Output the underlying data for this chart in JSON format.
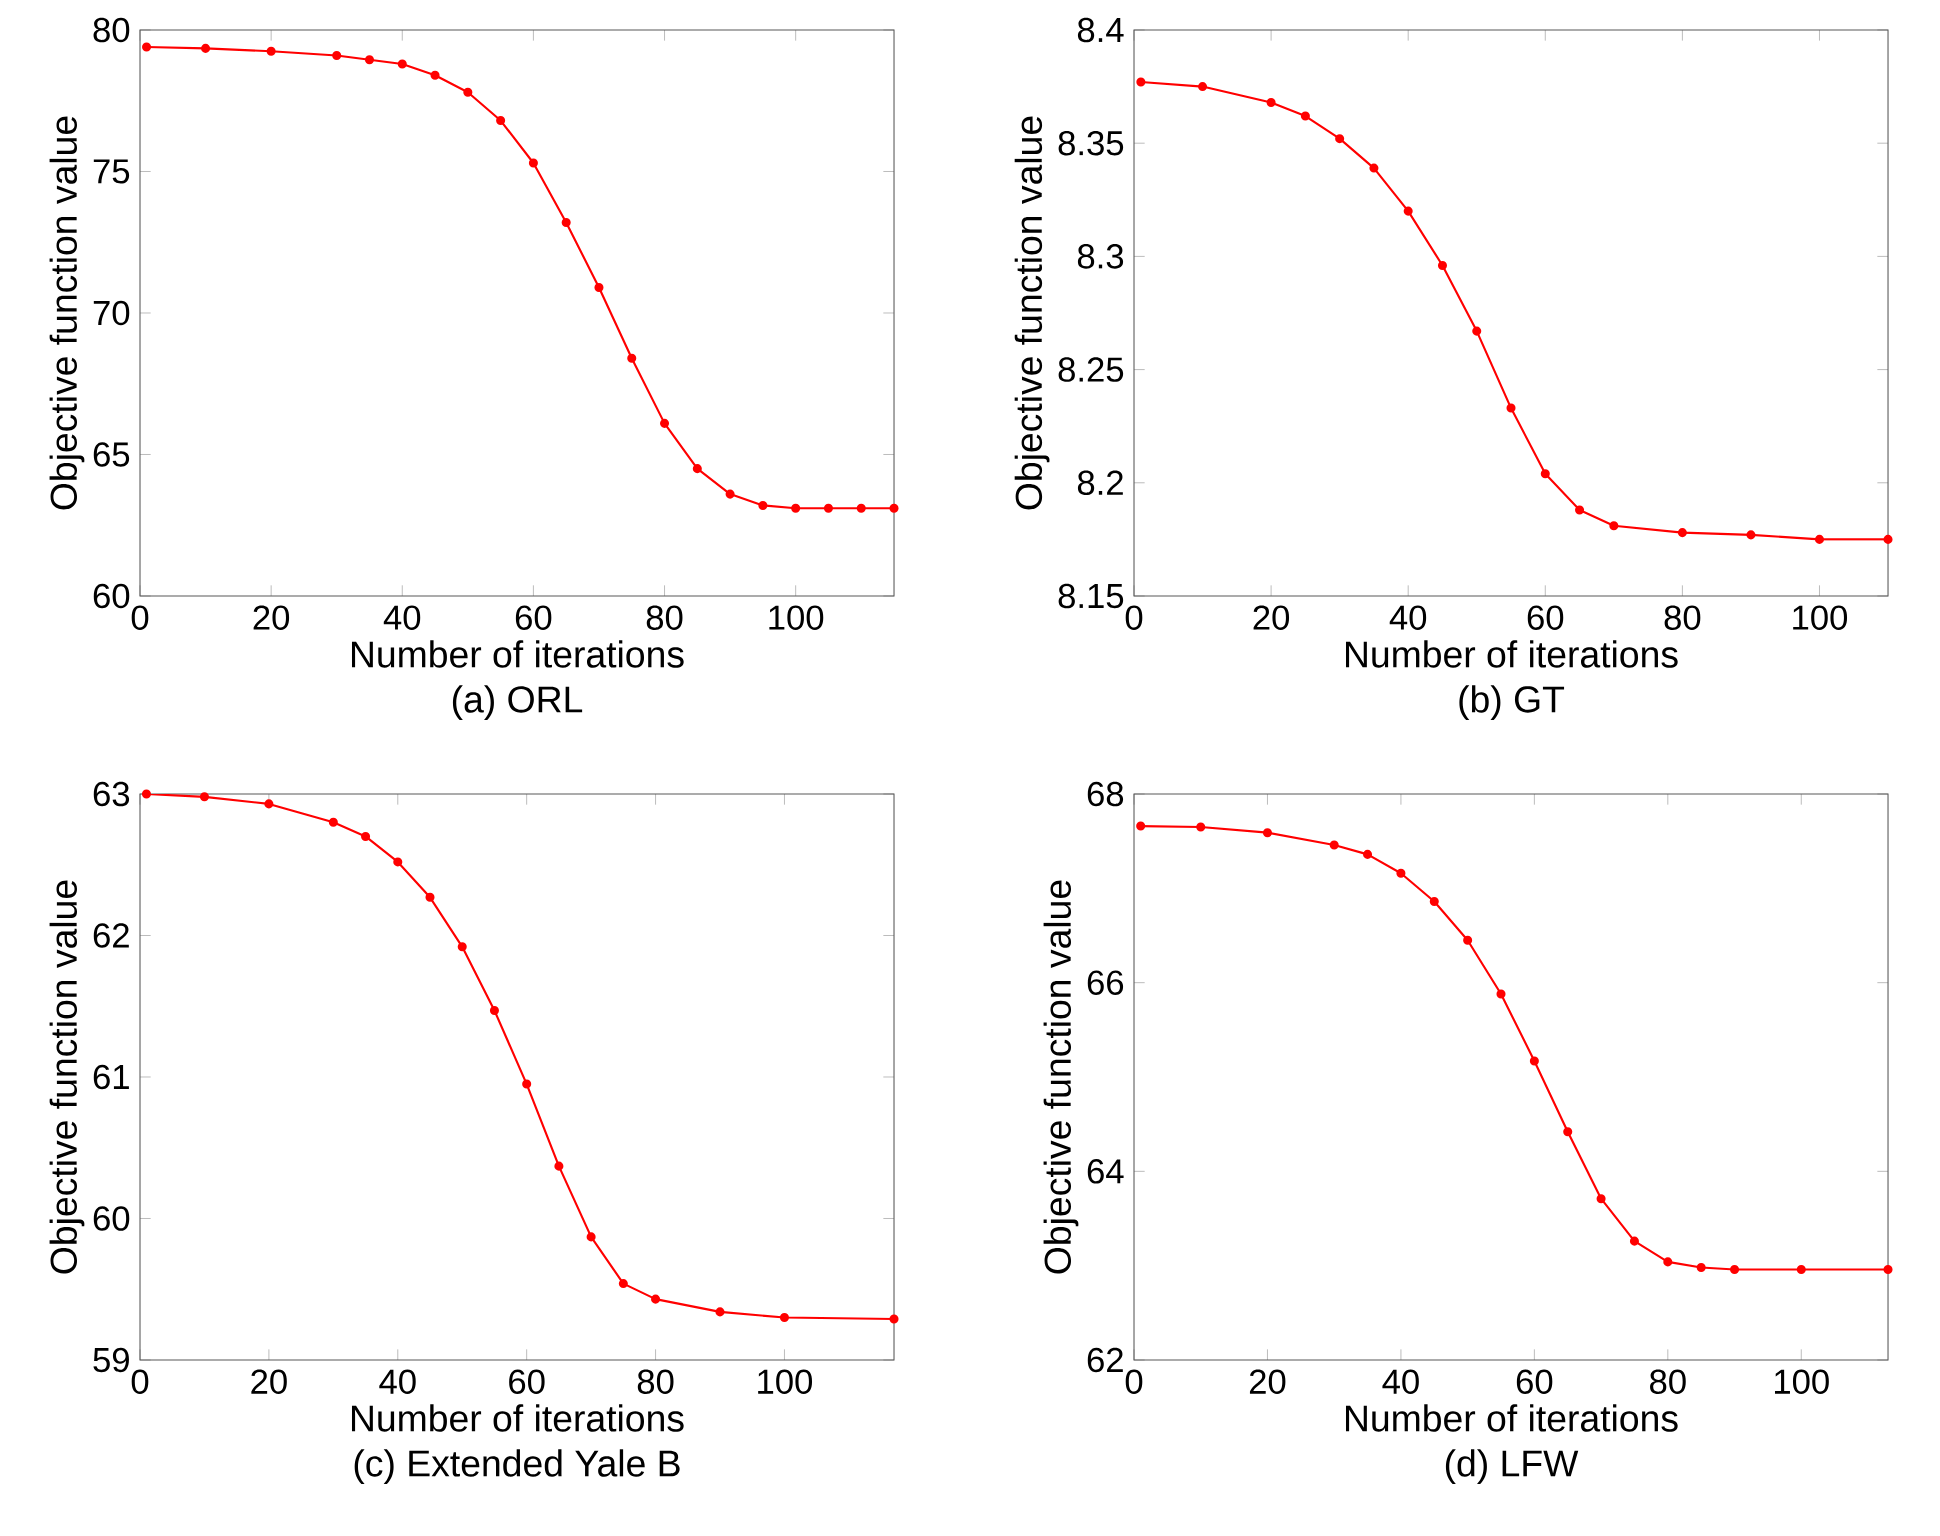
{
  "chart_data": [
    {
      "type": "line",
      "title": "(a) ORL",
      "xlabel": "Number of iterations",
      "ylabel": "Objective function value",
      "color": "#ff0000",
      "marker": "circle",
      "xlim": [
        0,
        115
      ],
      "ylim": [
        60,
        80
      ],
      "xticks": [
        0,
        20,
        40,
        60,
        80,
        100
      ],
      "yticks": [
        60,
        65,
        70,
        75,
        80
      ],
      "x": [
        1,
        10,
        20,
        30,
        35,
        40,
        45,
        50,
        55,
        60,
        65,
        70,
        75,
        80,
        85,
        90,
        95,
        100,
        105,
        110,
        115
      ],
      "values": [
        79.4,
        79.35,
        79.25,
        79.1,
        78.95,
        78.8,
        78.4,
        77.8,
        76.8,
        75.3,
        73.2,
        70.9,
        68.4,
        66.1,
        64.5,
        63.6,
        63.2,
        63.1,
        63.1,
        63.1,
        63.1
      ]
    },
    {
      "type": "line",
      "title": "(b) GT",
      "xlabel": "Number of iterations",
      "ylabel": "Objective function value",
      "color": "#ff0000",
      "marker": "circle",
      "xlim": [
        0,
        110
      ],
      "ylim": [
        8.15,
        8.4
      ],
      "xticks": [
        0,
        20,
        40,
        60,
        80,
        100
      ],
      "yticks": [
        8.15,
        8.2,
        8.25,
        8.3,
        8.35,
        8.4
      ],
      "x": [
        1,
        10,
        20,
        25,
        30,
        35,
        40,
        45,
        50,
        55,
        60,
        65,
        70,
        80,
        90,
        100,
        110
      ],
      "values": [
        8.377,
        8.375,
        8.368,
        8.362,
        8.352,
        8.339,
        8.32,
        8.296,
        8.267,
        8.233,
        8.204,
        8.188,
        8.181,
        8.178,
        8.177,
        8.175,
        8.175
      ]
    },
    {
      "type": "line",
      "title": "(c) Extended Yale B",
      "xlabel": "Number of iterations",
      "ylabel": "Objective function value",
      "color": "#ff0000",
      "marker": "circle",
      "xlim": [
        0,
        117
      ],
      "ylim": [
        59,
        63
      ],
      "xticks": [
        0,
        20,
        40,
        60,
        80,
        100
      ],
      "yticks": [
        59,
        60,
        61,
        62,
        63
      ],
      "x": [
        1,
        10,
        20,
        30,
        35,
        40,
        45,
        50,
        55,
        60,
        65,
        70,
        75,
        80,
        90,
        100,
        117
      ],
      "values": [
        63.0,
        62.98,
        62.93,
        62.8,
        62.7,
        62.52,
        62.27,
        61.92,
        61.47,
        60.95,
        60.37,
        59.87,
        59.54,
        59.43,
        59.34,
        59.3,
        59.29
      ]
    },
    {
      "type": "line",
      "title": "(d) LFW",
      "xlabel": "Number of iterations",
      "ylabel": "Objective function value",
      "color": "#ff0000",
      "marker": "circle",
      "xlim": [
        0,
        113
      ],
      "ylim": [
        62,
        68
      ],
      "xticks": [
        0,
        20,
        40,
        60,
        80,
        100
      ],
      "yticks": [
        62,
        64,
        66,
        68
      ],
      "x": [
        1,
        10,
        20,
        30,
        35,
        40,
        45,
        50,
        55,
        60,
        65,
        70,
        75,
        80,
        85,
        90,
        100,
        113
      ],
      "values": [
        67.66,
        67.65,
        67.59,
        67.46,
        67.36,
        67.16,
        66.86,
        66.45,
        65.88,
        65.17,
        64.42,
        63.71,
        63.26,
        63.04,
        62.98,
        62.96,
        62.96,
        62.96
      ]
    }
  ]
}
